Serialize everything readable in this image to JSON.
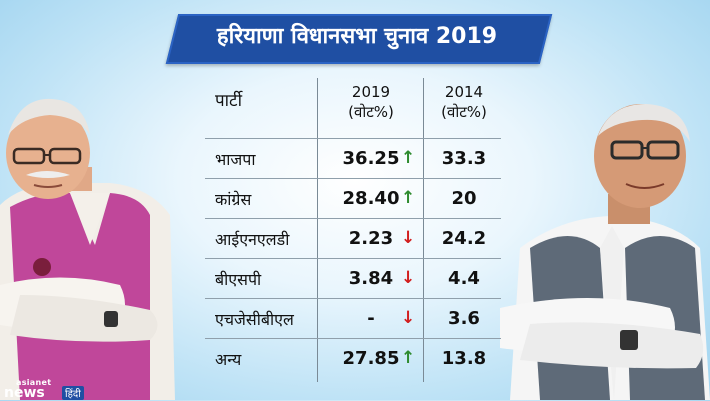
{
  "title": "हरियाणा विधानसभा चुनाव 2019",
  "table": {
    "headers": {
      "party": "पार्टी",
      "col2019_year": "2019",
      "col2019_unit": "(वोट%)",
      "col2014_year": "2014",
      "col2014_unit": "(वोट%)"
    },
    "rows": [
      {
        "party": "भाजपा",
        "v2019": "36.25",
        "trend": "up",
        "arrow": "↑",
        "v2014": "33.3"
      },
      {
        "party": "कांग्रेस",
        "v2019": "28.40",
        "trend": "up",
        "arrow": "↑",
        "v2014": "20"
      },
      {
        "party": "आईएनएलडी",
        "v2019": "2.23",
        "trend": "down",
        "arrow": "↓",
        "v2014": "24.2"
      },
      {
        "party": "बीएसपी",
        "v2019": "3.84",
        "trend": "down",
        "arrow": "↓",
        "v2014": "4.4"
      },
      {
        "party": "एचजेसीबीएल",
        "v2019": "-",
        "trend": "down",
        "arrow": "↓",
        "v2014": "3.6"
      },
      {
        "party": "अन्य",
        "v2019": "27.85",
        "trend": "up",
        "arrow": "↑",
        "v2014": "13.8"
      }
    ]
  },
  "logo": {
    "top": "asianet",
    "main": "news",
    "hindi": "हिंदी"
  },
  "colors": {
    "banner": "#1f4fa3",
    "up": "#2e8b2e",
    "down": "#d21f1f"
  }
}
